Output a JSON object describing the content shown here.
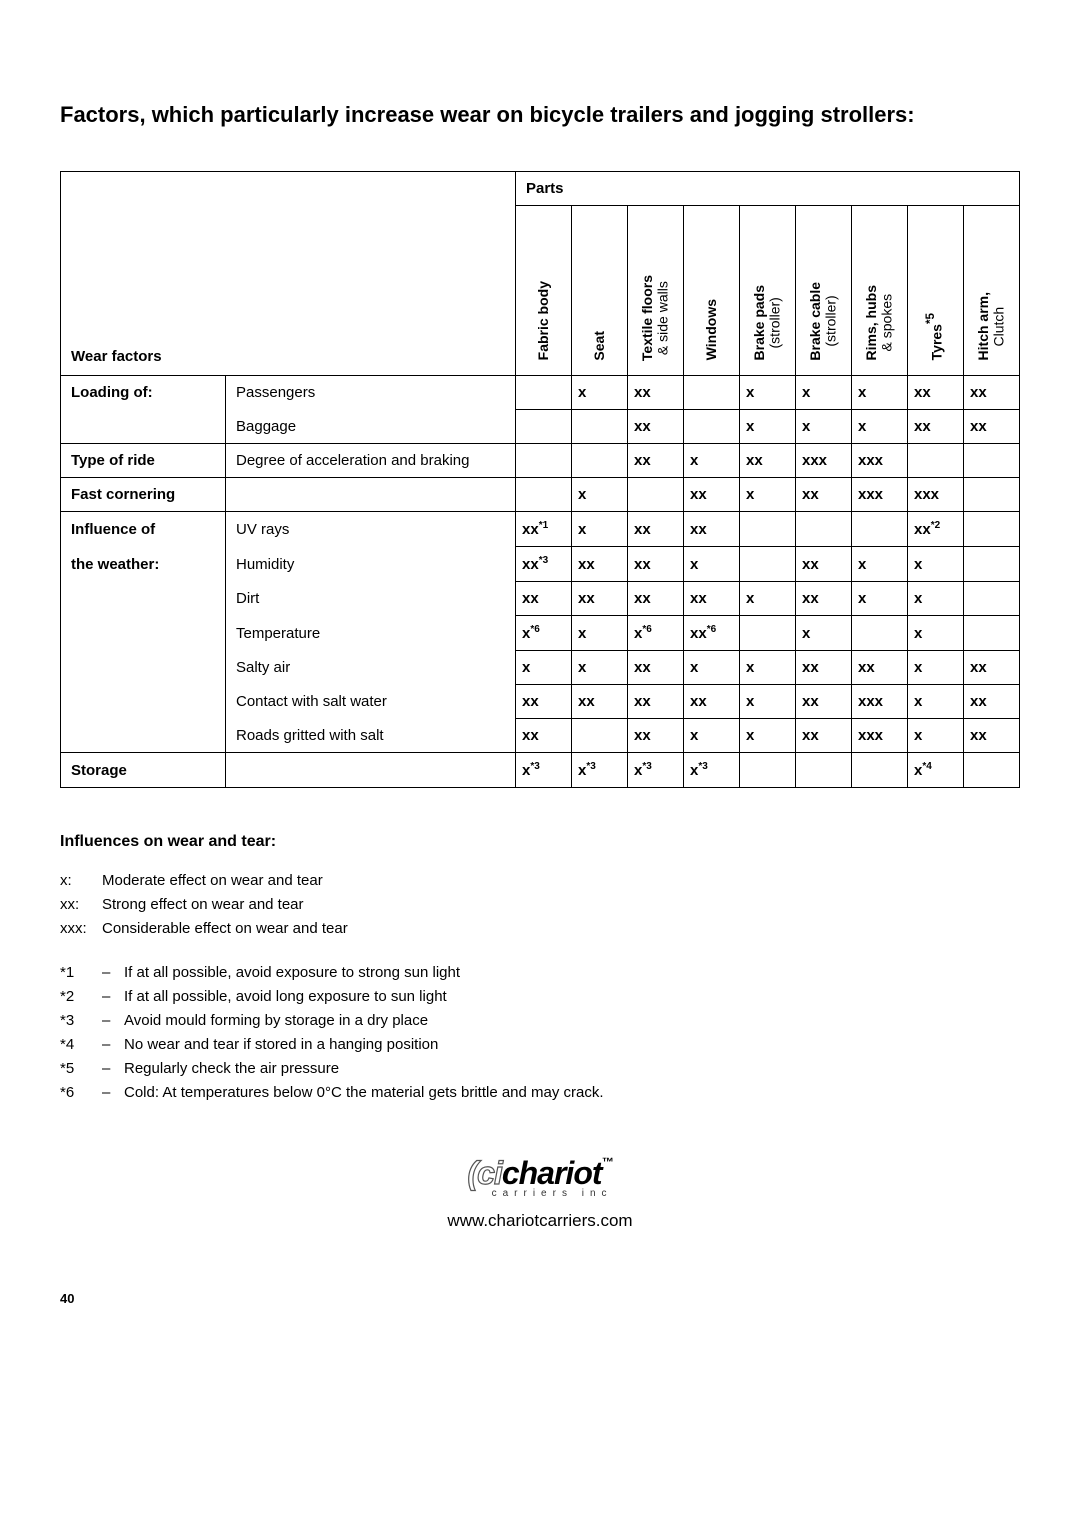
{
  "title": "Factors, which particularly increase wear on bicycle trailers and jogging strollers:",
  "headers": {
    "parts": "Parts",
    "wear_factors": "Wear factors"
  },
  "parts_columns": [
    {
      "main": "Fabric body",
      "sub": ""
    },
    {
      "main": "Seat",
      "sub": ""
    },
    {
      "main": "Textile floors",
      "sub": "& side walls"
    },
    {
      "main": "Windows",
      "sub": ""
    },
    {
      "main": "Brake pads",
      "sub": "(stroller)"
    },
    {
      "main": "Brake cable",
      "sub": "(stroller)"
    },
    {
      "main": "Rims, hubs",
      "sub": "& spokes"
    },
    {
      "main": "Tyres",
      "sup": "*5",
      "sub": ""
    },
    {
      "main": "Hitch arm,",
      "sub": "Clutch"
    }
  ],
  "rows": [
    {
      "label": "Loading of:",
      "sub": "Passengers",
      "group_pos": "start",
      "cells": [
        "",
        "x",
        "xx",
        "",
        "x",
        "x",
        "x",
        "xx",
        "xx"
      ]
    },
    {
      "label": "",
      "sub": "Baggage",
      "group_pos": "end",
      "cells": [
        "",
        "",
        "xx",
        "",
        "x",
        "x",
        "x",
        "xx",
        "xx"
      ]
    },
    {
      "label": "Type of ride",
      "sub": "Degree of acceleration and braking",
      "group_pos": "single",
      "cells": [
        "",
        "",
        "xx",
        "x",
        "xx",
        "xxx",
        "xxx",
        "",
        ""
      ]
    },
    {
      "label": "Fast cornering",
      "sub": "",
      "group_pos": "single",
      "cells": [
        "",
        "x",
        "",
        "xx",
        "x",
        "xx",
        "xxx",
        "xxx",
        ""
      ]
    },
    {
      "label": "Influence of",
      "sub": "UV rays",
      "group_pos": "start",
      "cells": [
        {
          "v": "xx",
          "s": "*1"
        },
        "x",
        "xx",
        "xx",
        "",
        "",
        "",
        {
          "v": "xx",
          "s": "*2"
        },
        ""
      ]
    },
    {
      "label": "the weather:",
      "sub": "Humidity",
      "group_pos": "mid",
      "cells": [
        {
          "v": "xx",
          "s": "*3"
        },
        "xx",
        "xx",
        "x",
        "",
        "xx",
        "x",
        "x",
        ""
      ]
    },
    {
      "label": "",
      "sub": "Dirt",
      "group_pos": "mid",
      "cells": [
        "xx",
        "xx",
        "xx",
        "xx",
        "x",
        "xx",
        "x",
        "x",
        ""
      ]
    },
    {
      "label": "",
      "sub": "Temperature",
      "group_pos": "mid",
      "cells": [
        {
          "v": "x",
          "s": "*6"
        },
        "x",
        {
          "v": "x",
          "s": "*6"
        },
        {
          "v": "xx",
          "s": "*6"
        },
        "",
        "x",
        "",
        "x",
        ""
      ]
    },
    {
      "label": "",
      "sub": "Salty air",
      "group_pos": "mid",
      "cells": [
        "x",
        "x",
        "xx",
        "x",
        "x",
        "xx",
        "xx",
        "x",
        "xx"
      ]
    },
    {
      "label": "",
      "sub": "Contact with salt water",
      "group_pos": "mid",
      "cells": [
        "xx",
        "xx",
        "xx",
        "xx",
        "x",
        "xx",
        "xxx",
        "x",
        "xx"
      ]
    },
    {
      "label": "",
      "sub": "Roads gritted with salt",
      "group_pos": "end",
      "cells": [
        "xx",
        "",
        "xx",
        "x",
        "x",
        "xx",
        "xxx",
        "x",
        "xx"
      ]
    },
    {
      "label": "Storage",
      "sub": "",
      "group_pos": "single",
      "cells": [
        {
          "v": "x",
          "s": "*3"
        },
        {
          "v": "x",
          "s": "*3"
        },
        {
          "v": "x",
          "s": "*3"
        },
        {
          "v": "x",
          "s": "*3"
        },
        "",
        "",
        "",
        {
          "v": "x",
          "s": "*4"
        },
        ""
      ]
    }
  ],
  "legend": {
    "title": "Influences on wear and tear:",
    "items": [
      {
        "key": "x:",
        "text": "Moderate effect on wear and tear"
      },
      {
        "key": "xx:",
        "text": "Strong effect on wear and tear"
      },
      {
        "key": "xxx:",
        "text": "Considerable effect on wear and tear"
      }
    ]
  },
  "notes": [
    {
      "key": "*1",
      "dash": "–",
      "text": "If at all possible, avoid exposure to strong sun light"
    },
    {
      "key": "*2",
      "dash": "–",
      "text": "If at all possible, avoid long exposure to sun light"
    },
    {
      "key": "*3",
      "dash": "–",
      "text": "Avoid mould forming by storage in a dry place"
    },
    {
      "key": "*4",
      "dash": "–",
      "text": "No wear and tear if stored in a hanging position"
    },
    {
      "key": "*5",
      "dash": "–",
      "text": "Regularly check the air pressure"
    },
    {
      "key": "*6",
      "dash": "–",
      "text": "Cold: At temperatures below 0°C the material gets brittle and may crack."
    }
  ],
  "footer": {
    "logo_text": "chariot",
    "logo_tag": "carriers inc",
    "url": "www.chariotcarriers.com",
    "page": "40"
  }
}
